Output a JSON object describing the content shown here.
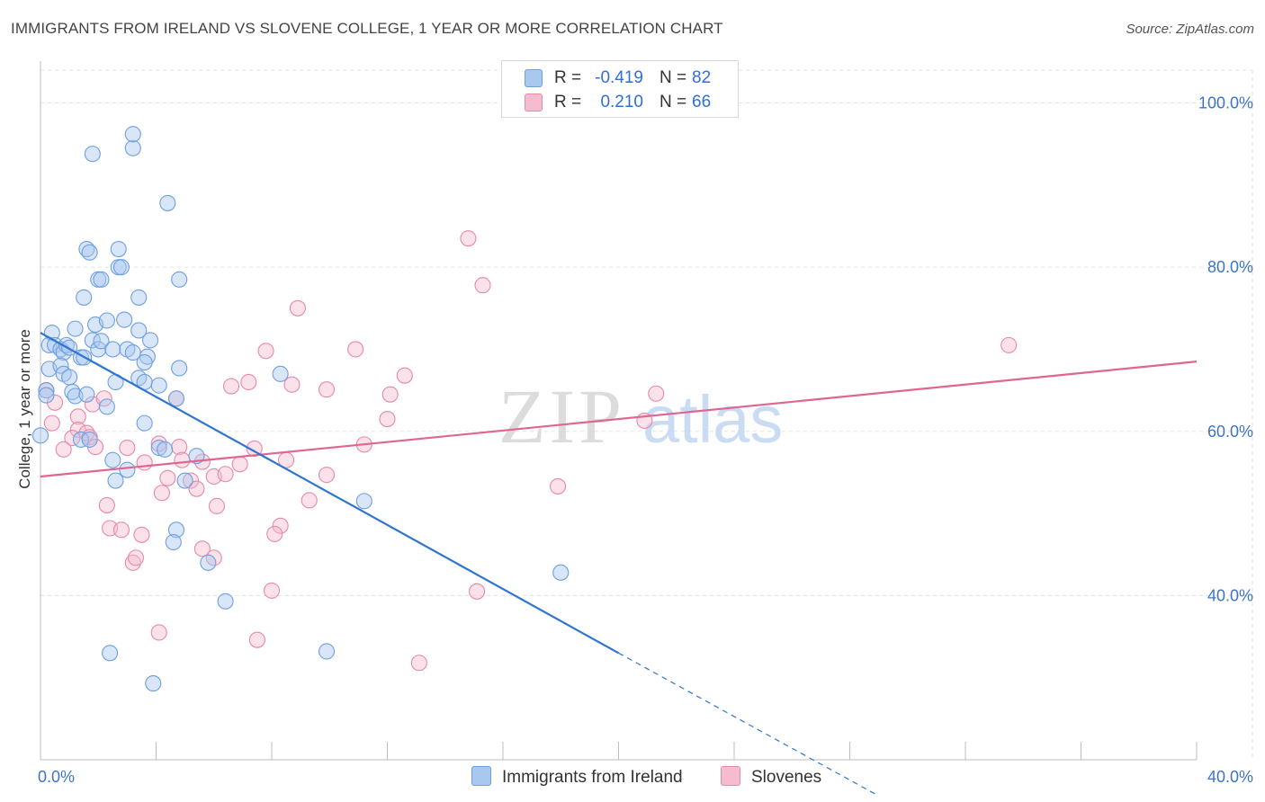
{
  "title": "IMMIGRANTS FROM IRELAND VS SLOVENE COLLEGE, 1 YEAR OR MORE CORRELATION CHART",
  "source": "Source: ZipAtlas.com",
  "colors": {
    "blue_fill": "#a9c8f0",
    "blue_stroke": "#6d9fe0",
    "blue_line": "#2f74d0",
    "pink_fill": "#f5bcd0",
    "pink_stroke": "#e888aa",
    "pink_line": "#e06591",
    "grid": "#e3e3e3",
    "axis_text": "#3d74c9"
  },
  "legend": {
    "rows": [
      {
        "r_label": "R =",
        "r_value": "-0.419",
        "n_label": "N =",
        "n_value": "82",
        "color": "#a9c8f0",
        "border": "#6d9fe0"
      },
      {
        "r_label": "R =",
        "r_value": "0.210",
        "n_label": "N =",
        "n_value": "66",
        "color": "#f5bcd0",
        "border": "#e888aa"
      }
    ]
  },
  "watermark": {
    "zip": "ZIP",
    "atlas": "atlas"
  },
  "chart_data": {
    "type": "scatter",
    "title": "IMMIGRANTS FROM IRELAND VS SLOVENE COLLEGE, 1 YEAR OR MORE CORRELATION CHART",
    "xlabel": "",
    "ylabel": "College, 1 year or more",
    "xlim": [
      0,
      40
    ],
    "ylim": [
      20,
      104
    ],
    "x_tick_labels": [
      "0.0%",
      "40.0%"
    ],
    "y_ticks": [
      40,
      60,
      80,
      100
    ],
    "y_tick_labels": [
      "40.0%",
      "60.0%",
      "80.0%",
      "100.0%"
    ],
    "grid": true,
    "legend_position": "bottom-center",
    "series": [
      {
        "name": "Immigrants from Ireland",
        "color": "#a9c8f0",
        "points": [
          [
            1.8,
            93.8
          ],
          [
            3.2,
            94.5
          ],
          [
            3.2,
            96.2
          ],
          [
            4.4,
            87.8
          ],
          [
            1.6,
            82.2
          ],
          [
            1.7,
            81.8
          ],
          [
            2.7,
            82.2
          ],
          [
            2.7,
            80.0
          ],
          [
            2.8,
            80.0
          ],
          [
            2.0,
            78.5
          ],
          [
            2.1,
            78.5
          ],
          [
            4.8,
            78.5
          ],
          [
            1.5,
            76.3
          ],
          [
            3.4,
            76.3
          ],
          [
            0.4,
            72.0
          ],
          [
            1.2,
            72.5
          ],
          [
            1.9,
            73.0
          ],
          [
            2.3,
            73.5
          ],
          [
            2.9,
            73.6
          ],
          [
            3.4,
            72.3
          ],
          [
            3.8,
            71.1
          ],
          [
            0.3,
            70.5
          ],
          [
            0.5,
            70.5
          ],
          [
            0.7,
            70.0
          ],
          [
            0.8,
            69.6
          ],
          [
            0.9,
            70.5
          ],
          [
            1.0,
            70.2
          ],
          [
            1.4,
            69.0
          ],
          [
            1.8,
            71.1
          ],
          [
            2.0,
            70.0
          ],
          [
            2.1,
            71.0
          ],
          [
            2.5,
            70.0
          ],
          [
            3.0,
            70.0
          ],
          [
            3.2,
            69.6
          ],
          [
            3.7,
            69.1
          ],
          [
            0.3,
            67.6
          ],
          [
            0.7,
            68.0
          ],
          [
            0.8,
            67.0
          ],
          [
            1.0,
            66.6
          ],
          [
            1.5,
            69.0
          ],
          [
            3.6,
            68.4
          ],
          [
            4.8,
            67.7
          ],
          [
            8.3,
            67.0
          ],
          [
            2.6,
            66.0
          ],
          [
            3.4,
            66.5
          ],
          [
            3.6,
            66.0
          ],
          [
            4.1,
            65.6
          ],
          [
            0.2,
            65.0
          ],
          [
            0.2,
            64.4
          ],
          [
            1.1,
            64.8
          ],
          [
            1.2,
            64.3
          ],
          [
            1.6,
            64.5
          ],
          [
            2.3,
            63.0
          ],
          [
            3.6,
            61.0
          ],
          [
            4.7,
            64.0
          ],
          [
            1.4,
            59.0
          ],
          [
            1.7,
            59.0
          ],
          [
            4.1,
            58.0
          ],
          [
            4.3,
            57.8
          ],
          [
            2.5,
            56.5
          ],
          [
            5.4,
            57.0
          ],
          [
            3.0,
            55.3
          ],
          [
            2.6,
            54.0
          ],
          [
            5.0,
            54.0
          ],
          [
            0.0,
            59.5
          ],
          [
            11.2,
            51.5
          ],
          [
            4.7,
            48.0
          ],
          [
            4.6,
            46.5
          ],
          [
            5.8,
            44.0
          ],
          [
            18.0,
            42.8
          ],
          [
            6.4,
            39.3
          ],
          [
            2.4,
            33.0
          ],
          [
            9.9,
            33.2
          ],
          [
            3.9,
            29.3
          ]
        ]
      },
      {
        "name": "Slovenes",
        "color": "#f5bcd0",
        "points": [
          [
            14.8,
            83.5
          ],
          [
            15.3,
            77.8
          ],
          [
            33.5,
            70.5
          ],
          [
            8.9,
            75.0
          ],
          [
            10.9,
            70.0
          ],
          [
            7.8,
            69.8
          ],
          [
            12.6,
            66.8
          ],
          [
            7.2,
            66.0
          ],
          [
            6.6,
            65.5
          ],
          [
            8.7,
            65.7
          ],
          [
            9.9,
            65.1
          ],
          [
            12.1,
            64.5
          ],
          [
            21.3,
            64.6
          ],
          [
            0.2,
            65.0
          ],
          [
            0.5,
            63.5
          ],
          [
            1.8,
            63.3
          ],
          [
            2.2,
            64.0
          ],
          [
            4.7,
            64.0
          ],
          [
            12.0,
            61.5
          ],
          [
            20.9,
            61.3
          ],
          [
            1.3,
            61.8
          ],
          [
            0.4,
            61.0
          ],
          [
            1.3,
            60.2
          ],
          [
            1.1,
            59.2
          ],
          [
            1.6,
            59.8
          ],
          [
            1.7,
            59.3
          ],
          [
            0.8,
            57.8
          ],
          [
            1.9,
            58.1
          ],
          [
            3.0,
            58.0
          ],
          [
            4.1,
            58.5
          ],
          [
            4.8,
            58.1
          ],
          [
            7.4,
            57.9
          ],
          [
            11.2,
            58.4
          ],
          [
            3.6,
            56.2
          ],
          [
            4.9,
            56.5
          ],
          [
            5.6,
            56.3
          ],
          [
            6.9,
            56.0
          ],
          [
            8.5,
            56.5
          ],
          [
            4.4,
            54.3
          ],
          [
            5.2,
            54.0
          ],
          [
            5.4,
            53.0
          ],
          [
            6.0,
            54.5
          ],
          [
            6.4,
            54.8
          ],
          [
            9.9,
            54.7
          ],
          [
            17.9,
            53.3
          ],
          [
            4.2,
            52.5
          ],
          [
            9.3,
            51.6
          ],
          [
            2.3,
            51.0
          ],
          [
            6.1,
            50.9
          ],
          [
            2.4,
            48.2
          ],
          [
            2.8,
            48.0
          ],
          [
            3.5,
            47.4
          ],
          [
            8.3,
            48.5
          ],
          [
            8.1,
            47.5
          ],
          [
            5.6,
            45.7
          ],
          [
            6.0,
            44.6
          ],
          [
            3.2,
            44.0
          ],
          [
            3.3,
            44.6
          ],
          [
            8.0,
            40.6
          ],
          [
            15.1,
            40.5
          ],
          [
            4.1,
            35.5
          ],
          [
            7.5,
            34.6
          ],
          [
            13.1,
            31.8
          ]
        ]
      }
    ],
    "trend_lines": [
      {
        "series": "Immigrants from Ireland",
        "x": [
          0,
          20
        ],
        "y": [
          72.0,
          33.0
        ],
        "extension_x": [
          20,
          29
        ],
        "extension_y": [
          33.0,
          15.6
        ]
      },
      {
        "series": "Slovenes",
        "x": [
          0,
          40
        ],
        "y": [
          54.5,
          68.5
        ]
      }
    ]
  }
}
